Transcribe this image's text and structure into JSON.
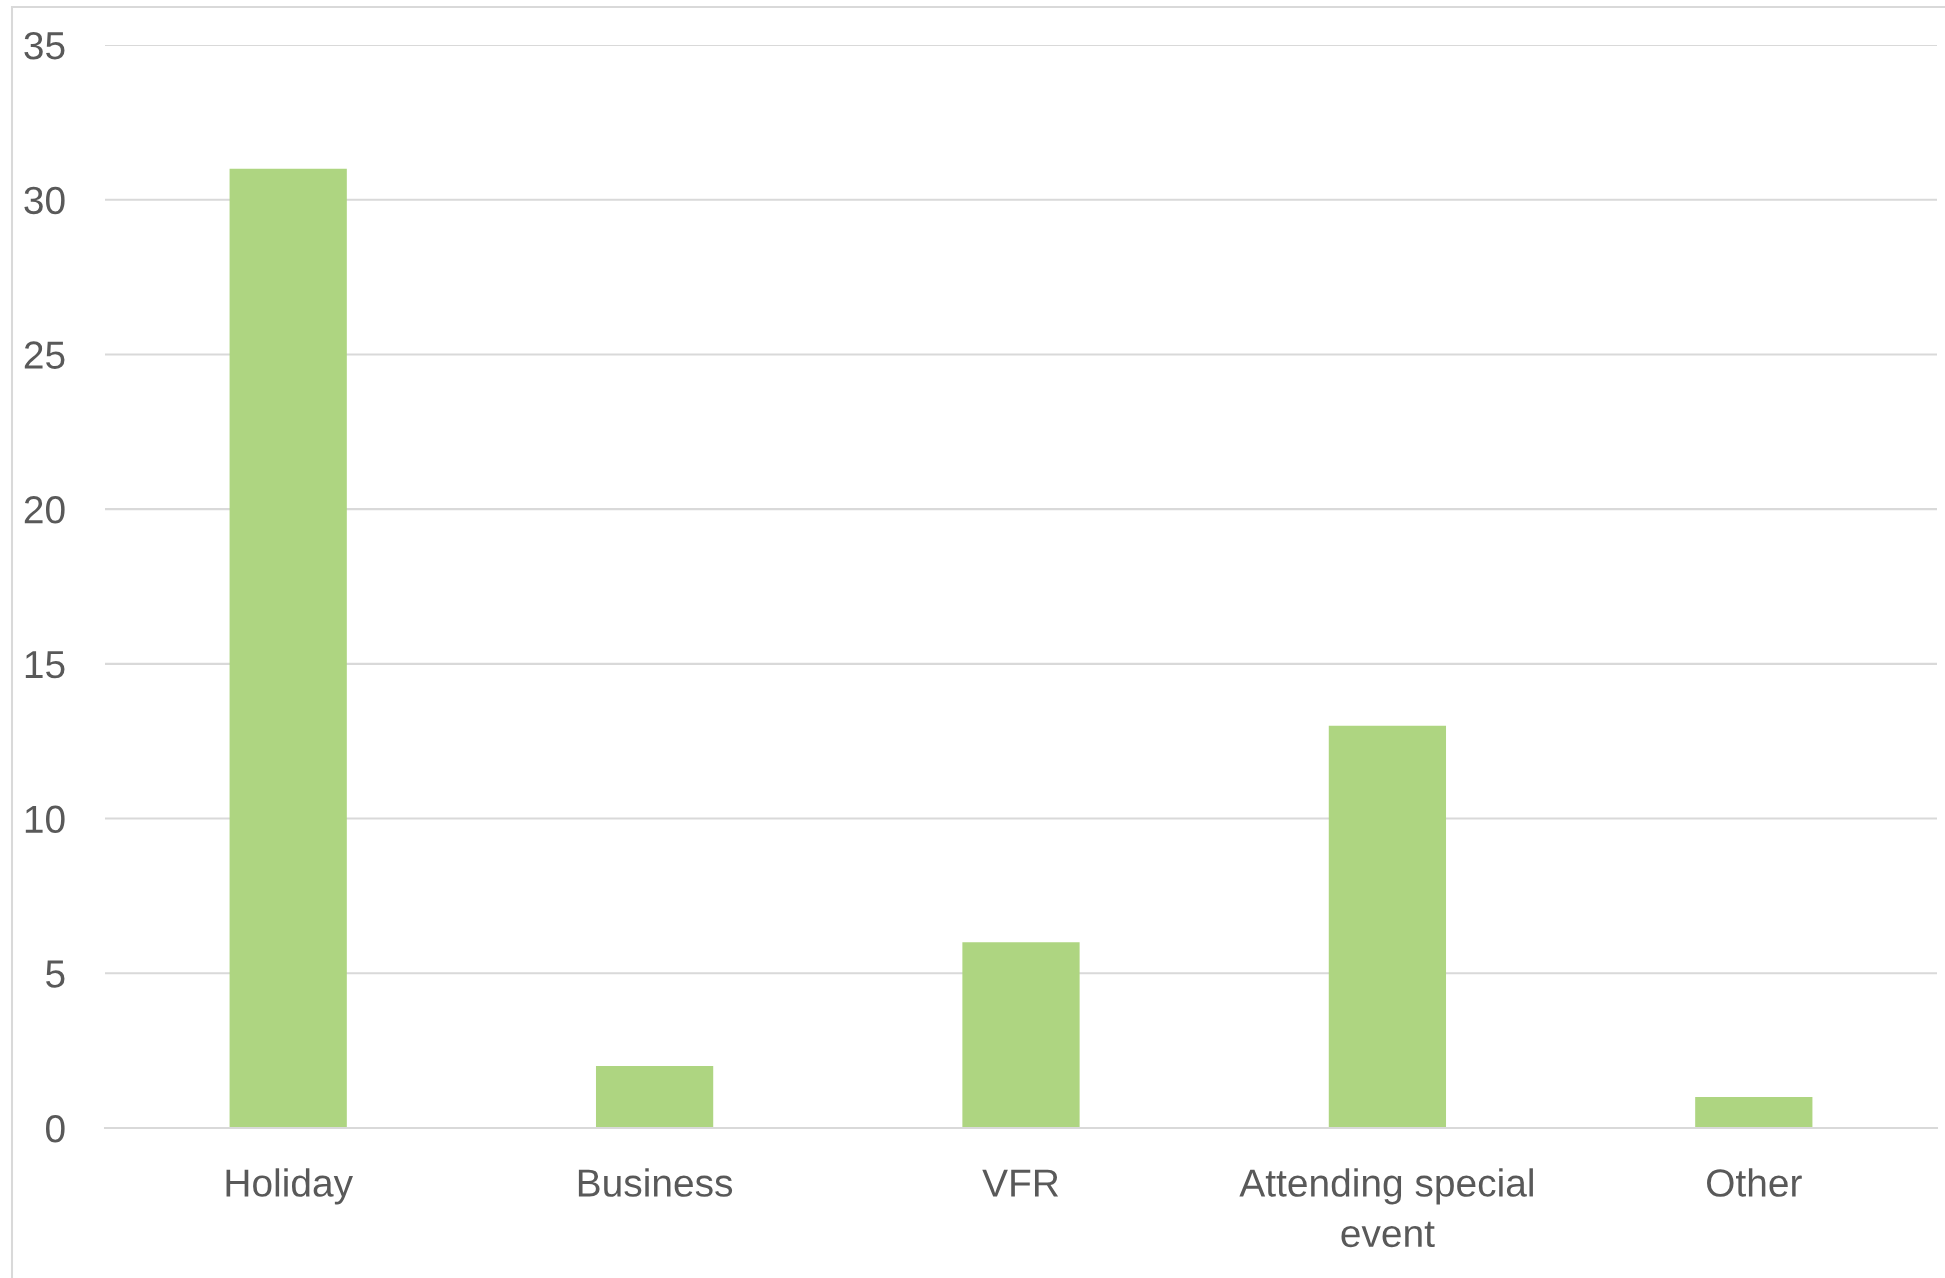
{
  "chart_data": {
    "type": "bar",
    "categories": [
      "Holiday",
      "Business",
      "VFR",
      "Attending special event",
      "Other"
    ],
    "values": [
      31,
      2,
      6,
      13,
      1
    ],
    "color": "#aed581",
    "ylim": [
      0,
      35
    ],
    "yticks": [
      0,
      5,
      10,
      15,
      20,
      25,
      30,
      35
    ],
    "grid": "y"
  }
}
